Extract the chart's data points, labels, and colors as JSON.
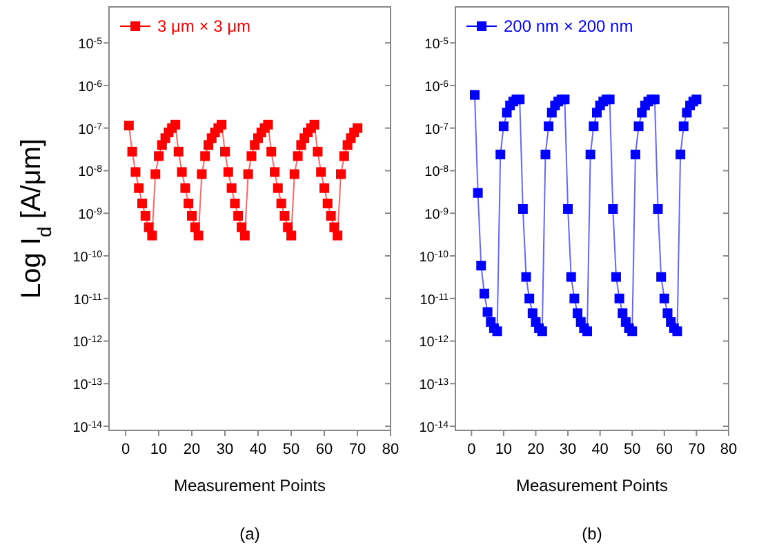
{
  "chart_data": [
    {
      "type": "line",
      "ylabel": "Log I$_{d}$ [A/μm]",
      "xlabel": "Measurement Points",
      "annotations": [
        "(a)"
      ],
      "log": "y",
      "marker": "square",
      "line_style": "solid",
      "legend": "top left",
      "grid": false,
      "xlim": [
        -5,
        80
      ],
      "xticks": [
        0,
        10,
        20,
        30,
        40,
        50,
        60,
        70,
        80
      ],
      "ylim": [
        8e-15,
        7e-05
      ],
      "yticks": [
        {
          "value": 1e-14,
          "label": "10$^{-14}$"
        },
        {
          "value": 1e-13,
          "label": "10$^{-13}$"
        },
        {
          "value": 1e-12,
          "label": "10$^{-12}$"
        },
        {
          "value": 1e-11,
          "label": "10$^{-11}$"
        },
        {
          "value": 1e-10,
          "label": "10$^{-10}$"
        },
        {
          "value": 1e-09,
          "label": "10$^{-9}$"
        },
        {
          "value": 1e-08,
          "label": "10$^{-8}$"
        },
        {
          "value": 1e-07,
          "label": "10$^{-7}$"
        },
        {
          "value": 1e-06,
          "label": "10$^{-6}$"
        },
        {
          "value": 1e-05,
          "label": "10$^{-5}$"
        }
      ],
      "x": [
        1,
        2,
        3,
        4,
        5,
        6,
        7,
        8,
        9,
        10,
        11,
        12,
        13,
        14,
        15,
        16,
        17,
        18,
        19,
        20,
        21,
        22,
        23,
        24,
        25,
        26,
        27,
        28,
        29,
        30,
        31,
        32,
        33,
        34,
        35,
        36,
        37,
        38,
        39,
        40,
        41,
        42,
        43,
        44,
        45,
        46,
        47,
        48,
        49,
        50,
        51,
        52,
        53,
        54,
        55,
        56,
        57,
        58,
        59,
        60,
        61,
        62,
        63,
        64,
        65,
        66,
        67,
        68,
        69,
        70
      ],
      "series": [
        {
          "name": "3 μm × 3 μm",
          "color": "#ff0000",
          "values": [
            1.15e-07,
            2.8e-08,
            9.3e-09,
            3.9e-09,
            1.7e-09,
            8.7e-10,
            4.7e-10,
            3e-10,
            8.3e-09,
            2.2e-08,
            4e-08,
            5.8e-08,
            7.9e-08,
            1e-07,
            1.2e-07,
            2.8e-08,
            9.3e-09,
            3.9e-09,
            1.7e-09,
            8.7e-10,
            4.7e-10,
            3e-10,
            8.3e-09,
            2.2e-08,
            4e-08,
            5.8e-08,
            7.9e-08,
            1e-07,
            1.2e-07,
            2.8e-08,
            9.3e-09,
            3.9e-09,
            1.7e-09,
            8.7e-10,
            4.7e-10,
            3e-10,
            8.3e-09,
            2.2e-08,
            4e-08,
            5.8e-08,
            7.9e-08,
            1e-07,
            1.2e-07,
            2.8e-08,
            9.3e-09,
            3.9e-09,
            1.7e-09,
            8.7e-10,
            4.7e-10,
            3e-10,
            8.3e-09,
            2.2e-08,
            4e-08,
            5.8e-08,
            7.9e-08,
            1e-07,
            1.2e-07,
            2.8e-08,
            9.3e-09,
            3.9e-09,
            1.7e-09,
            8.7e-10,
            4.7e-10,
            3e-10,
            8.3e-09,
            2.2e-08,
            4e-08,
            5.8e-08,
            7.9e-08,
            1e-07
          ]
        }
      ]
    },
    {
      "type": "line",
      "xlabel": "Measurement Points",
      "annotations": [
        "(b)"
      ],
      "log": "y",
      "marker": "square",
      "line_style": "solid",
      "legend": "top left",
      "grid": false,
      "xlim": [
        -5,
        80
      ],
      "xticks": [
        0,
        10,
        20,
        30,
        40,
        50,
        60,
        70,
        80
      ],
      "ylim": [
        8e-15,
        7e-05
      ],
      "yticks": [
        {
          "value": 1e-14,
          "label": "10$^{-14}$"
        },
        {
          "value": 1e-13,
          "label": "10$^{-13}$"
        },
        {
          "value": 1e-12,
          "label": "10$^{-12}$"
        },
        {
          "value": 1e-11,
          "label": "10$^{-11}$"
        },
        {
          "value": 1e-10,
          "label": "10$^{-10}$"
        },
        {
          "value": 1e-09,
          "label": "10$^{-9}$"
        },
        {
          "value": 1e-08,
          "label": "10$^{-8}$"
        },
        {
          "value": 1e-07,
          "label": "10$^{-7}$"
        },
        {
          "value": 1e-06,
          "label": "10$^{-6}$"
        },
        {
          "value": 1e-05,
          "label": "10$^{-5}$"
        }
      ],
      "x": [
        1,
        2,
        3,
        4,
        5,
        6,
        7,
        8,
        9,
        10,
        11,
        12,
        13,
        14,
        15,
        16,
        17,
        18,
        19,
        20,
        21,
        22,
        23,
        24,
        25,
        26,
        27,
        28,
        29,
        30,
        31,
        32,
        33,
        34,
        35,
        36,
        37,
        38,
        39,
        40,
        41,
        42,
        43,
        44,
        45,
        46,
        47,
        48,
        49,
        50,
        51,
        52,
        53,
        54,
        55,
        56,
        57,
        58,
        59,
        60,
        61,
        62,
        63,
        64,
        65,
        66,
        67,
        68,
        69,
        70
      ],
      "series": [
        {
          "name": "200 nm × 200 nm",
          "color": "#0000ff",
          "values": [
            6e-07,
            3e-09,
            5.9e-11,
            1.3e-11,
            4.8e-12,
            2.8e-12,
            2e-12,
            1.7e-12,
            2.4e-08,
            1.1e-07,
            2.3e-07,
            3.4e-07,
            4.2e-07,
            4.7e-07,
            4.7e-07,
            1.26e-09,
            3.2e-11,
            1e-11,
            4.5e-12,
            2.8e-12,
            2e-12,
            1.7e-12,
            2.4e-08,
            1.1e-07,
            2.3e-07,
            3.4e-07,
            4.2e-07,
            4.7e-07,
            4.7e-07,
            1.26e-09,
            3.2e-11,
            1e-11,
            4.5e-12,
            2.8e-12,
            2e-12,
            1.7e-12,
            2.4e-08,
            1.1e-07,
            2.3e-07,
            3.4e-07,
            4.2e-07,
            4.7e-07,
            4.7e-07,
            1.26e-09,
            3.2e-11,
            1e-11,
            4.5e-12,
            2.8e-12,
            2e-12,
            1.7e-12,
            2.4e-08,
            1.1e-07,
            2.3e-07,
            3.4e-07,
            4.2e-07,
            4.7e-07,
            4.7e-07,
            1.26e-09,
            3.2e-11,
            1e-11,
            4.5e-12,
            2.8e-12,
            2e-12,
            1.7e-12,
            2.4e-08,
            1.1e-07,
            2.3e-07,
            3.4e-07,
            4.2e-07,
            4.7e-07
          ]
        }
      ]
    }
  ]
}
